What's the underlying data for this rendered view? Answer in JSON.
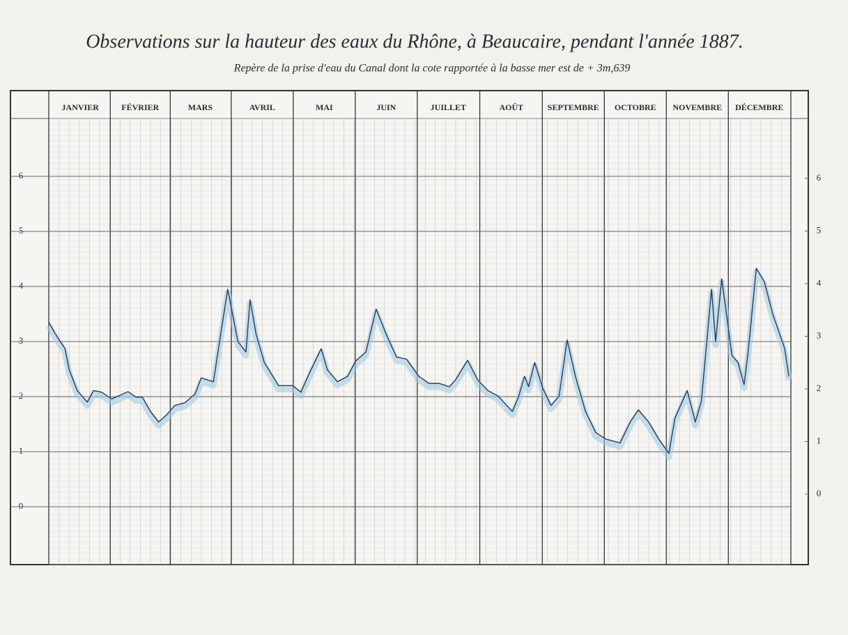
{
  "chart_data": {
    "type": "line",
    "title": "Observations sur la hauteur des eaux du Rhône, à Beaucaire, pendant l'année 1887.",
    "subtitle": "Repère de la prise d'eau du Canal dont la cote rapportée à la basse mer est de + 3m,639",
    "x": [
      0,
      3,
      8,
      10,
      14,
      19,
      22,
      26,
      31,
      36,
      39,
      43,
      46,
      50,
      54,
      58,
      62,
      67,
      72,
      75,
      81,
      84,
      88,
      93,
      97,
      99,
      102,
      106,
      113,
      120,
      124,
      129,
      134,
      137,
      142,
      147,
      151,
      156,
      161,
      166,
      171,
      176,
      182,
      187,
      192,
      197,
      200,
      206,
      211,
      216,
      221,
      228,
      231,
      234,
      236,
      239,
      243,
      247,
      251,
      255,
      259,
      264,
      269,
      274,
      281,
      286,
      290,
      295,
      300,
      305,
      308,
      314,
      318,
      321,
      326,
      328,
      331,
      336,
      339,
      342,
      344,
      348,
      352,
      356,
      362,
      364
    ],
    "values": [
      3.35,
      3.15,
      2.87,
      2.49,
      2.11,
      1.9,
      2.11,
      2.08,
      1.96,
      2.04,
      2.09,
      1.99,
      1.99,
      1.73,
      1.54,
      1.67,
      1.84,
      1.89,
      2.05,
      2.34,
      2.27,
      3.0,
      3.95,
      3.0,
      2.81,
      3.76,
      3.13,
      2.62,
      2.2,
      2.2,
      2.08,
      2.49,
      2.87,
      2.49,
      2.27,
      2.37,
      2.65,
      2.81,
      3.59,
      3.13,
      2.72,
      2.68,
      2.37,
      2.24,
      2.24,
      2.18,
      2.3,
      2.66,
      2.3,
      2.11,
      2.01,
      1.73,
      1.99,
      2.37,
      2.18,
      2.62,
      2.15,
      1.84,
      2.01,
      3.03,
      2.37,
      1.73,
      1.35,
      1.23,
      1.16,
      1.54,
      1.76,
      1.54,
      1.23,
      0.97,
      1.61,
      2.11,
      1.54,
      1.92,
      3.95,
      3.0,
      4.14,
      2.75,
      2.62,
      2.22,
      2.81,
      4.33,
      4.08,
      3.51,
      2.87,
      2.37
    ],
    "color": "#2a3a5a",
    "xlim": [
      0,
      365
    ],
    "xticks": [
      {
        "value": 15.5,
        "label": "JANVIER"
      },
      {
        "value": 45,
        "label": "FÉVRIER"
      },
      {
        "value": 74.5,
        "label": "MARS"
      },
      {
        "value": 105,
        "label": "AVRIL"
      },
      {
        "value": 135.5,
        "label": "MAI"
      },
      {
        "value": 166,
        "label": "JUIN"
      },
      {
        "value": 196.5,
        "label": "JUILLET"
      },
      {
        "value": 227.5,
        "label": "AOÛT"
      },
      {
        "value": 258,
        "label": "SEPTEMBRE"
      },
      {
        "value": 288.5,
        "label": "OCTOBRE"
      },
      {
        "value": 319,
        "label": "NOVEMBRE"
      },
      {
        "value": 349.5,
        "label": "DÉCEMBRE"
      }
    ],
    "ylim": [
      -1.05,
      7.05
    ],
    "yticks": [
      0,
      1,
      2,
      3,
      4,
      5,
      6
    ],
    "y2lim": [
      -1.34,
      7.14
    ],
    "y2ticks": [
      0,
      1,
      2,
      3,
      4,
      5,
      6
    ],
    "grid": true
  }
}
